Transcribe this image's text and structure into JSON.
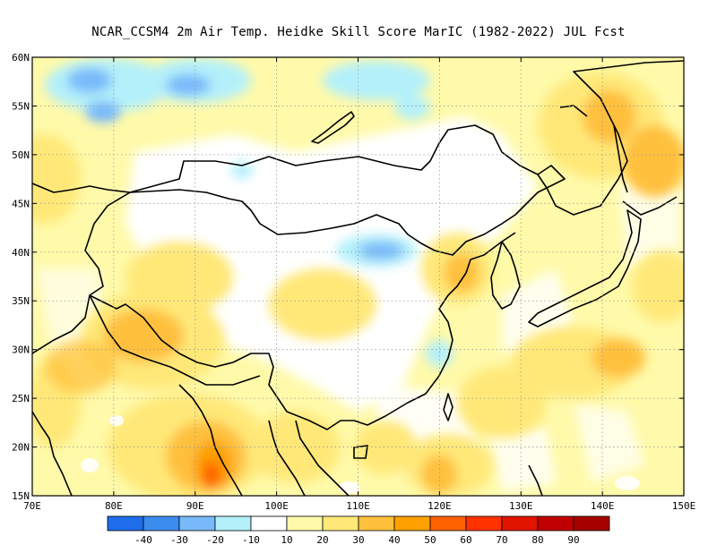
{
  "title": "NCAR_CCSM4  2m Air Temp. Heidke Skill Score MarIC (1982-2022) JUL Fcst",
  "map": {
    "lon_range": [
      70,
      150
    ],
    "lat_range": [
      15,
      60
    ],
    "lon_labels": [
      "70E",
      "80E",
      "90E",
      "100E",
      "110E",
      "120E",
      "130E",
      "140E",
      "150E"
    ],
    "lat_labels": [
      "15N",
      "20N",
      "25N",
      "30N",
      "35N",
      "40N",
      "45N",
      "50N",
      "55N",
      "60N"
    ],
    "grid": "dotted",
    "features": [
      {
        "kind": "hot",
        "lon": 91,
        "lat": 18,
        "level": 60
      },
      {
        "kind": "hot",
        "lon": 85,
        "lat": 30,
        "level": 40
      },
      {
        "kind": "hot",
        "lon": 139,
        "lat": 53,
        "level": 40
      },
      {
        "kind": "hot",
        "lon": 122,
        "lat": 37,
        "level": 40
      },
      {
        "kind": "hot",
        "lon": 122,
        "lat": 17,
        "level": 40
      },
      {
        "kind": "hot",
        "lon": 128,
        "lat": 19,
        "level": 30
      },
      {
        "kind": "hot",
        "lon": 136,
        "lat": 29,
        "level": 30
      },
      {
        "kind": "hot",
        "lon": 90,
        "lat": 37,
        "level": 30
      },
      {
        "kind": "cold",
        "lon": 78,
        "lat": 57,
        "level": -30
      },
      {
        "kind": "cold",
        "lon": 90,
        "lat": 57,
        "level": -30
      },
      {
        "kind": "cold",
        "lon": 115,
        "lat": 40,
        "level": -30
      },
      {
        "kind": "cold",
        "lon": 118,
        "lat": 29,
        "level": -20
      },
      {
        "kind": "cold",
        "lon": 103,
        "lat": 59,
        "level": -20
      }
    ]
  },
  "legend": {
    "labels": [
      "-40",
      "-30",
      "-20",
      "-10",
      "10",
      "20",
      "30",
      "40",
      "50",
      "60",
      "70",
      "80",
      "90"
    ],
    "colors": [
      "#1e6eeb",
      "#3c8cf0",
      "#78b9fa",
      "#b4f0fa",
      "#ffffff",
      "#fffaaa",
      "#ffe878",
      "#ffc03c",
      "#ffa000",
      "#ff6000",
      "#ff3200",
      "#e11400",
      "#c00000",
      "#a50000"
    ]
  }
}
